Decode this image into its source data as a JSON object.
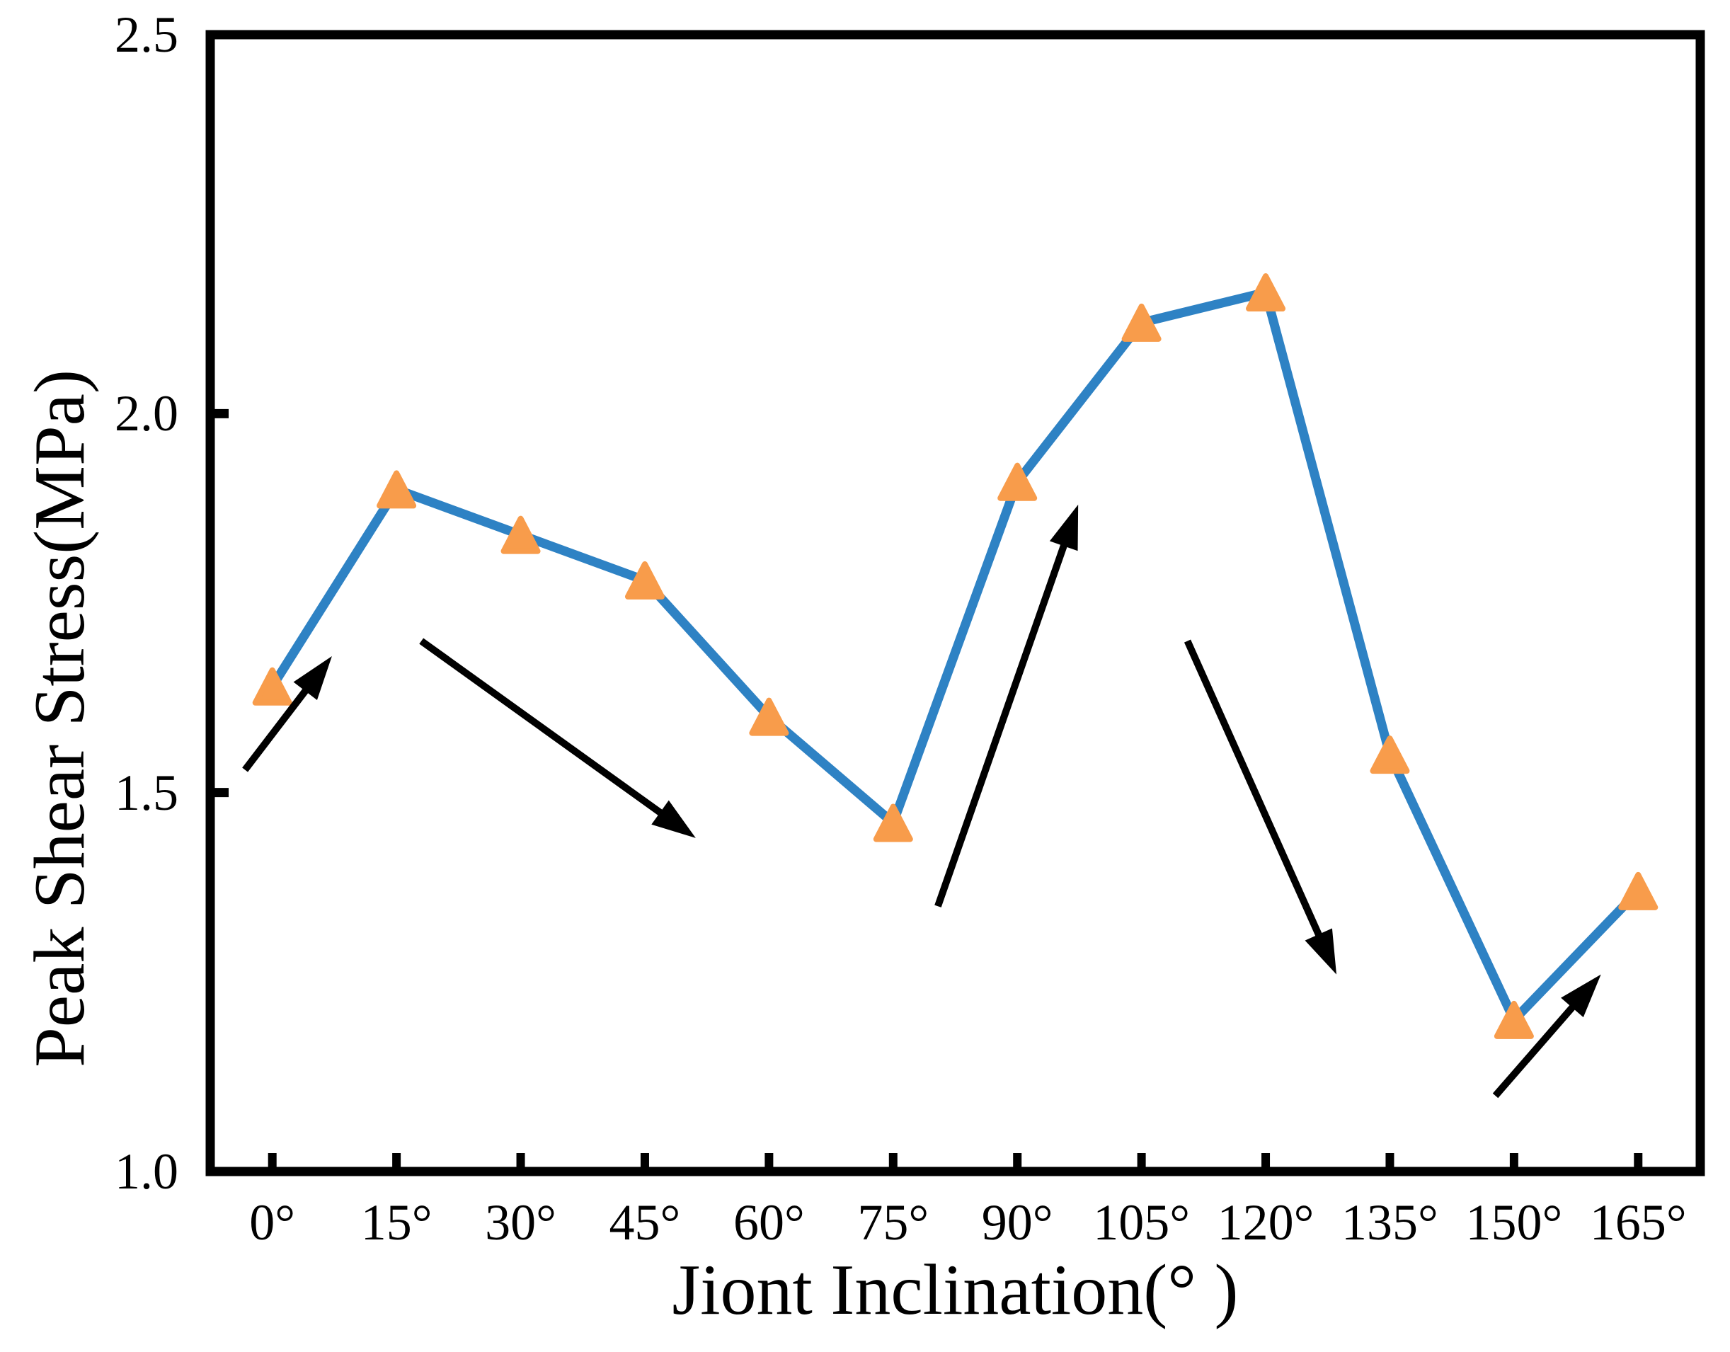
{
  "figure": {
    "background_color": "#ffffff",
    "axis_color": "#000000"
  },
  "chart_data": {
    "type": "line",
    "title": "",
    "xlabel": "Jiont Inclination(°  )",
    "ylabel": "Peak Shear Stress(MPa)",
    "categories": [
      "0°",
      "15°",
      "30°",
      "45°",
      "60°",
      "75°",
      "90°",
      "105°",
      "120°",
      "135°",
      "150°",
      "165°"
    ],
    "series": [
      {
        "name": "Peak Shear Stress",
        "values": [
          1.64,
          1.9,
          1.84,
          1.78,
          1.6,
          1.46,
          1.91,
          2.12,
          2.16,
          1.55,
          1.2,
          1.37
        ]
      }
    ],
    "ylim": [
      1.0,
      2.5
    ],
    "yticks": [
      1.0,
      1.5,
      2.0,
      2.5
    ],
    "ytick_labels": [
      "1.0",
      "1.5",
      "2.0",
      "2.5"
    ],
    "grid": false,
    "legend": "none",
    "line_color": "#2E82C4",
    "marker": "triangle-up",
    "marker_color": "#F89C4B",
    "annotation_arrows": [
      {
        "from": [
          0.28,
          1.53
        ],
        "to": [
          0.98,
          1.68
        ]
      },
      {
        "from": [
          1.7,
          1.7
        ],
        "to": [
          3.91,
          1.44
        ]
      },
      {
        "from": [
          5.86,
          1.35
        ],
        "to": [
          6.99,
          1.88
        ]
      },
      {
        "from": [
          7.87,
          1.7
        ],
        "to": [
          9.07,
          1.26
        ]
      },
      {
        "from": [
          10.35,
          1.1
        ],
        "to": [
          11.2,
          1.26
        ]
      }
    ]
  }
}
